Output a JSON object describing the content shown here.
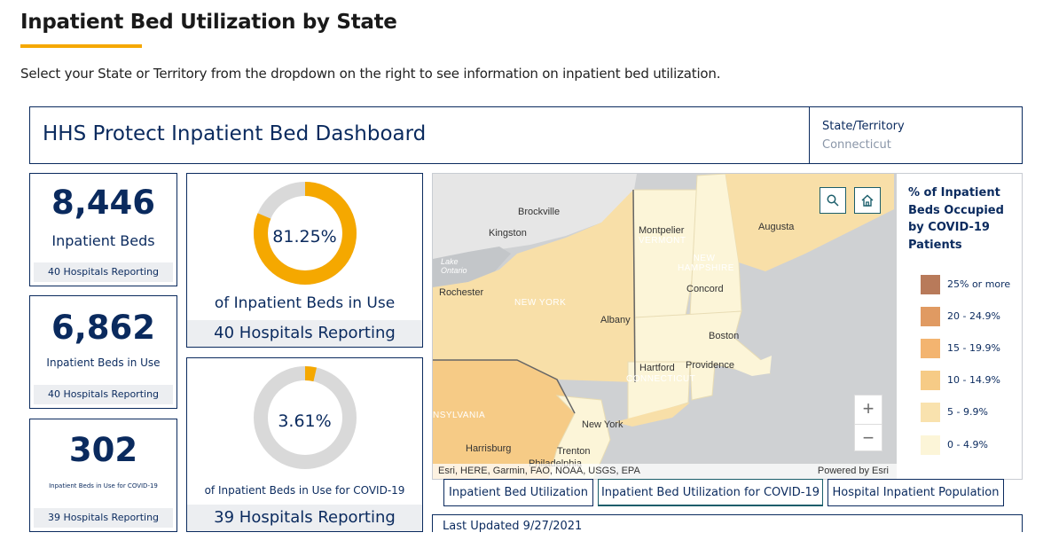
{
  "page": {
    "title": "Inpatient Bed Utilization by State",
    "intro": "Select your State or Territory from the dropdown on the right to see information on inpatient bed utilization."
  },
  "dashboard": {
    "title": "HHS Protect Inpatient Bed Dashboard",
    "state_label": "State/Territory",
    "state_value": "Connecticut"
  },
  "kpis": [
    {
      "value": "8,446",
      "label": "Inpatient Beds",
      "footer": "40 Hospitals Reporting"
    },
    {
      "value": "6,862",
      "label": "Inpatient Beds in Use",
      "footer": "40 Hospitals Reporting"
    },
    {
      "value": "302",
      "label": "Inpatient Beds in Use for COVID-19",
      "footer": "39 Hospitals Reporting"
    }
  ],
  "gauges": [
    {
      "percent_text": "81.25%",
      "fraction": 0.8125,
      "label": "of Inpatient Beds in Use",
      "footer": "40 Hospitals Reporting",
      "fill_color": "#f5a800",
      "track_color": "#d9d9d9"
    },
    {
      "percent_text": "3.61%",
      "fraction": 0.0361,
      "label": "of Inpatient Beds in Use for COVID-19",
      "footer": "39 Hospitals Reporting",
      "fill_color": "#f5a800",
      "track_color": "#d9d9d9"
    }
  ],
  "map": {
    "labels": {
      "brockville": "Brockville",
      "kingston": "Kingston",
      "lake_ontario": "Lake Ontario",
      "rochester": "Rochester",
      "new_york_state": "NEW YORK",
      "albany": "Albany",
      "montpelier": "Montpelier",
      "vermont": "VERMONT",
      "new_hampshire": "NEW HAMPSHIRE",
      "concord": "Concord",
      "augusta": "Augusta",
      "boston": "Boston",
      "hartford": "Hartford",
      "connecticut": "CONNECTICUT",
      "providence": "Providence",
      "pennsylvania": "NSYLVANIA",
      "new_york_city": "New York",
      "harrisburg": "Harrisburg",
      "trenton": "Trenton",
      "philadelphia": "Philadelphia"
    },
    "attribution": "Esri, HERE, Garmin, FAO, NOAA, USGS, EPA",
    "powered_by": "Powered by Esri",
    "controls": {
      "search_icon": "search-icon",
      "home_icon": "home-icon",
      "zoom_in": "+",
      "zoom_out": "−"
    }
  },
  "legend": {
    "title": "% of Inpatient Beds Occupied by COVID-19 Patients",
    "items": [
      {
        "label": "25% or more",
        "color": "#b87a5a"
      },
      {
        "label": "20 - 24.9%",
        "color": "#e09a62"
      },
      {
        "label": "15 - 19.9%",
        "color": "#f3b470"
      },
      {
        "label": "10 - 14.9%",
        "color": "#f6cb86"
      },
      {
        "label": "5 - 9.9%",
        "color": "#f9e2ae"
      },
      {
        "label": "0 - 4.9%",
        "color": "#fcf5d8"
      }
    ]
  },
  "tabs": [
    {
      "label": "Inpatient Bed Utilization"
    },
    {
      "label": "Inpatient Bed Utilization for COVID-19"
    },
    {
      "label": "Hospital Inpatient Population"
    }
  ],
  "last_updated": "Last Updated 9/27/2021"
}
